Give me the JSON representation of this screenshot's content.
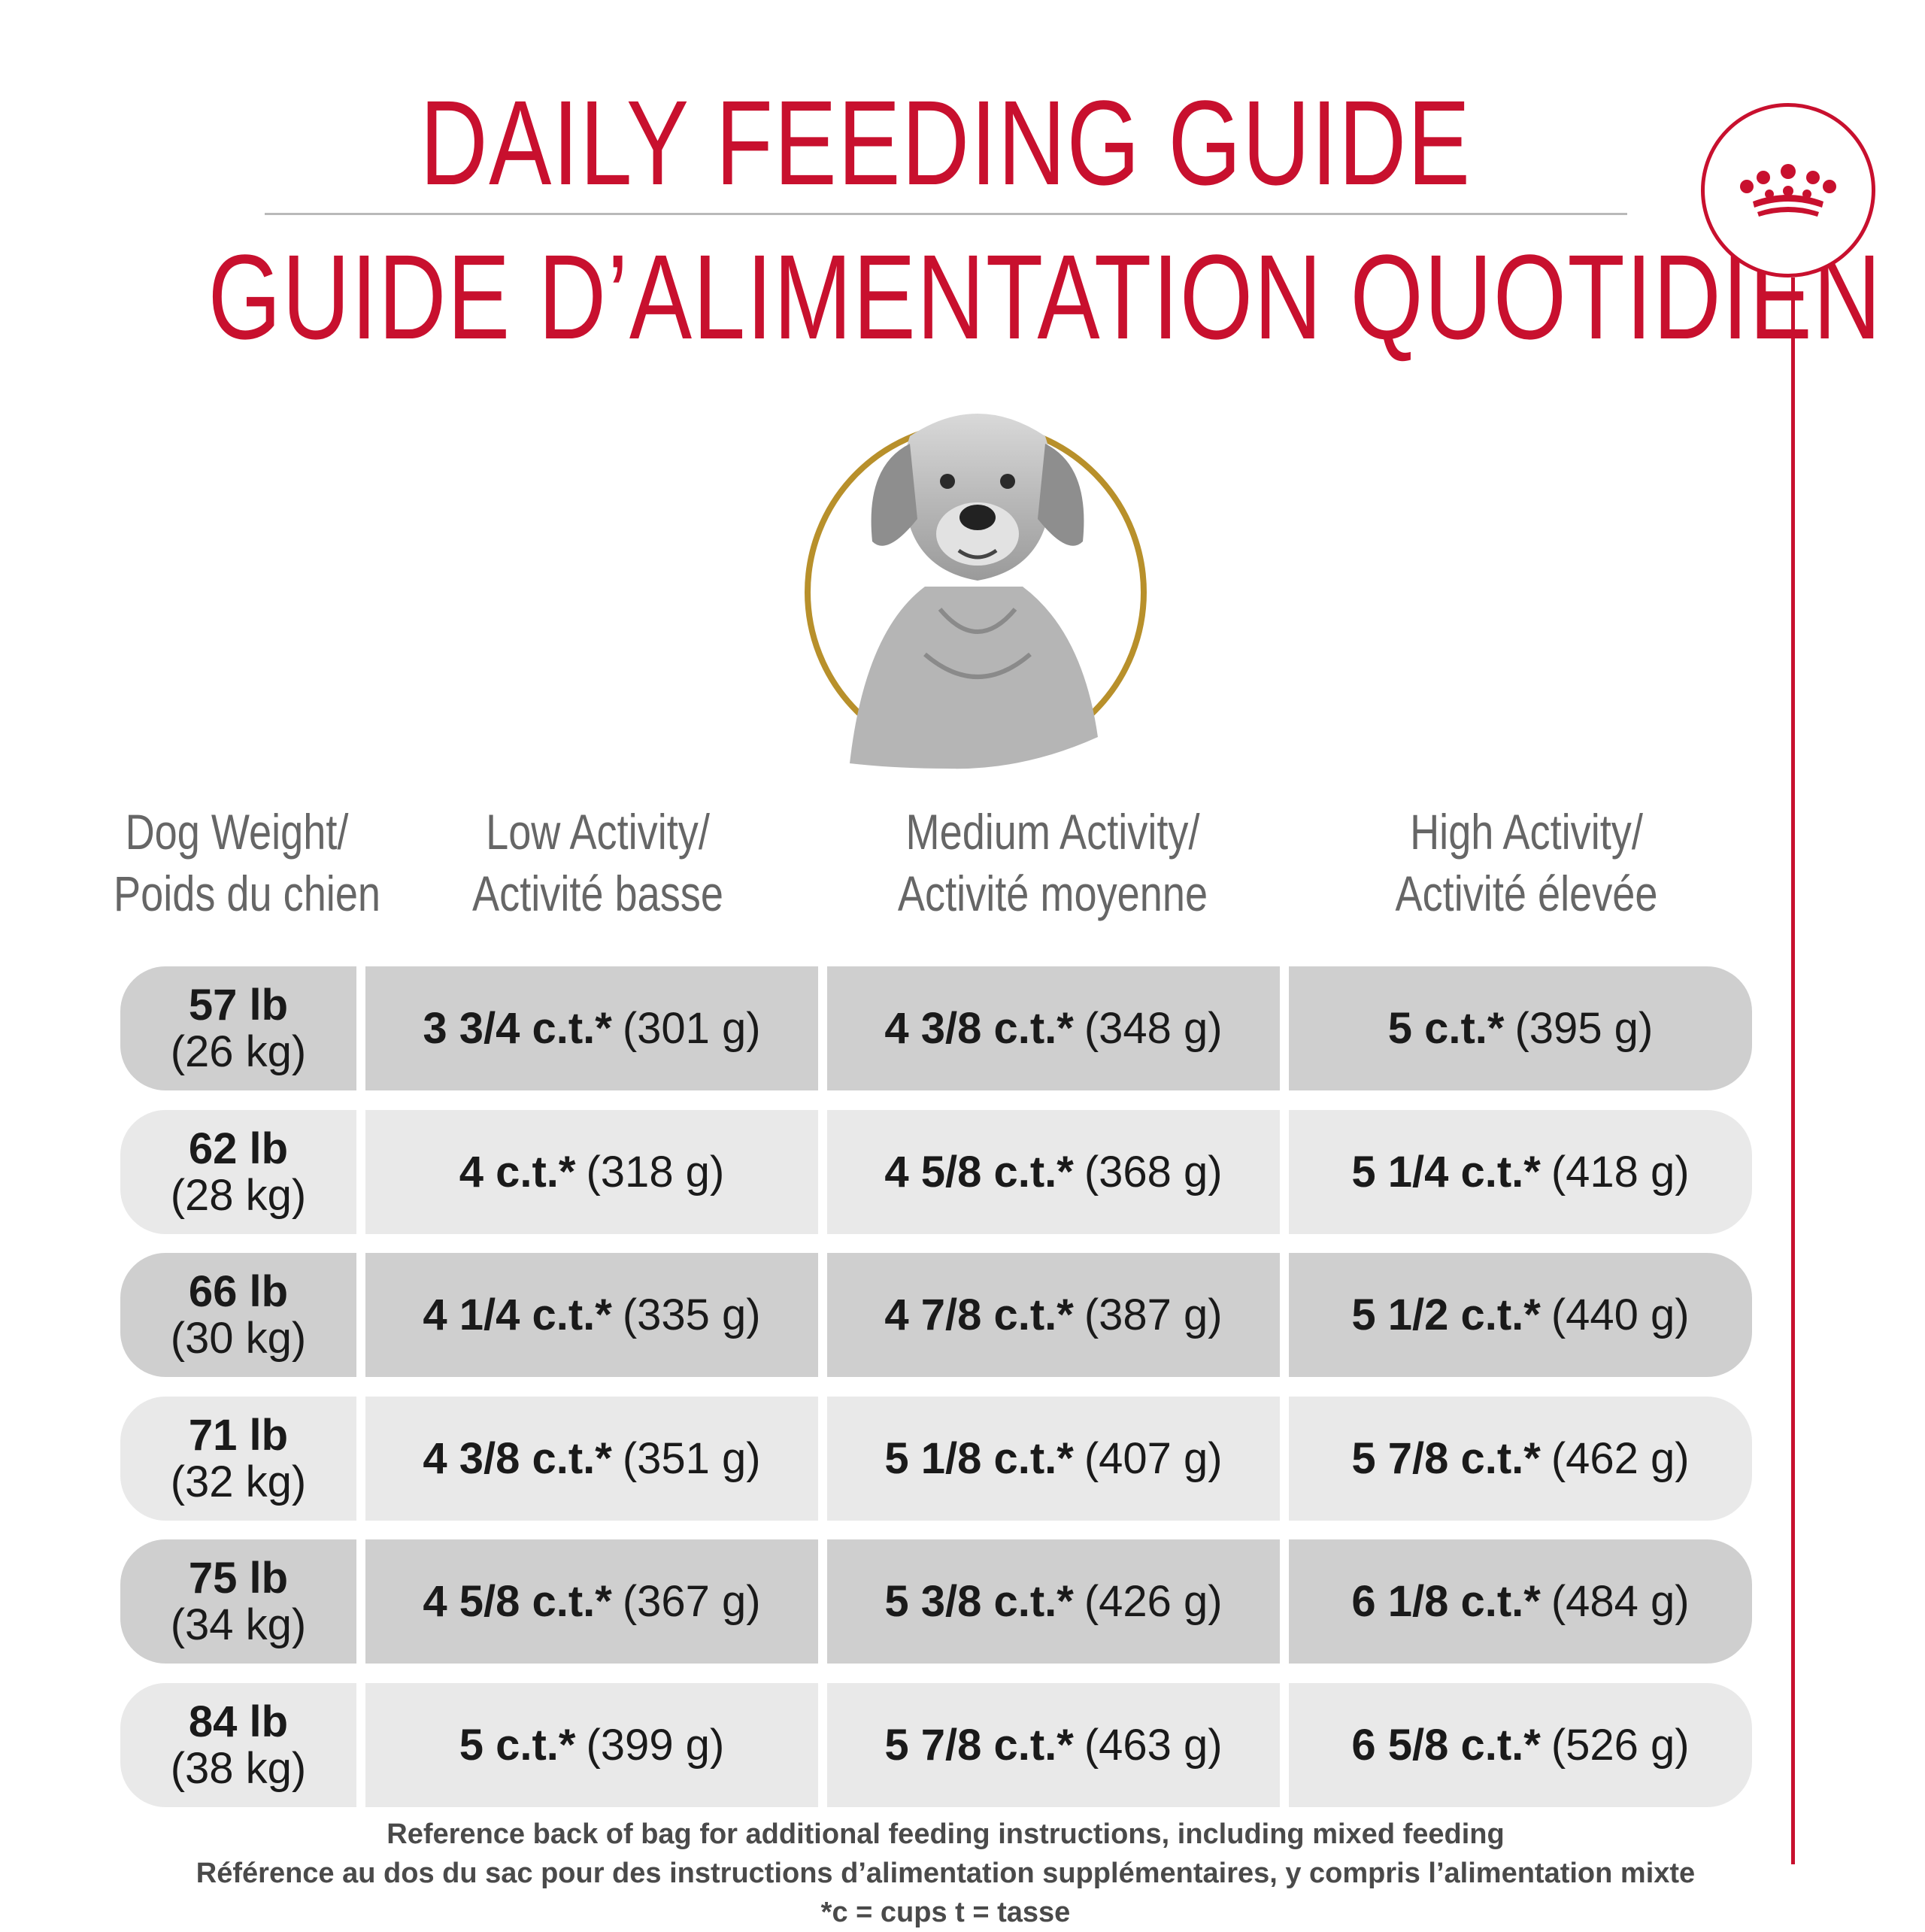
{
  "header": {
    "title_en": "DAILY FEEDING GUIDE",
    "title_fr": "GUIDE D’ALIMENTATION QUOTIDIEN"
  },
  "brand": {
    "icon": "crown-icon",
    "color": "#c8102e"
  },
  "columns": [
    {
      "line1": "Dog Weight/",
      "line2": "Poids du chien"
    },
    {
      "line1": "Low Activity/",
      "line2": "Activité basse"
    },
    {
      "line1": "Medium Activity/",
      "line2": "Activité moyenne"
    },
    {
      "line1": "High Activity/",
      "line2": "Activité élevée"
    }
  ],
  "rows": [
    {
      "lb": "57 lb",
      "kg": "(26 kg)",
      "low": {
        "amount": "3 3/4 c.t.*",
        "grams": "(301 g)"
      },
      "medium": {
        "amount": "4 3/8 c.t.*",
        "grams": "(348 g)"
      },
      "high": {
        "amount": "5 c.t.*",
        "grams": "(395 g)"
      }
    },
    {
      "lb": "62 lb",
      "kg": "(28 kg)",
      "low": {
        "amount": "4 c.t.*",
        "grams": "(318 g)"
      },
      "medium": {
        "amount": "4 5/8 c.t.*",
        "grams": "(368 g)"
      },
      "high": {
        "amount": "5 1/4 c.t.*",
        "grams": "(418 g)"
      }
    },
    {
      "lb": "66 lb",
      "kg": "(30 kg)",
      "low": {
        "amount": "4 1/4 c.t.*",
        "grams": "(335 g)"
      },
      "medium": {
        "amount": "4 7/8 c.t.*",
        "grams": "(387 g)"
      },
      "high": {
        "amount": "5 1/2 c.t.*",
        "grams": "(440 g)"
      }
    },
    {
      "lb": "71 lb",
      "kg": "(32 kg)",
      "low": {
        "amount": "4 3/8 c.t.*",
        "grams": "(351 g)"
      },
      "medium": {
        "amount": "5 1/8 c.t.*",
        "grams": "(407 g)"
      },
      "high": {
        "amount": "5 7/8 c.t.*",
        "grams": "(462 g)"
      }
    },
    {
      "lb": "75 lb",
      "kg": "(34 kg)",
      "low": {
        "amount": "4 5/8 c.t.*",
        "grams": "(367 g)"
      },
      "medium": {
        "amount": "5 3/8 c.t.*",
        "grams": "(426 g)"
      },
      "high": {
        "amount": "6 1/8 c.t.*",
        "grams": "(484 g)"
      }
    },
    {
      "lb": "84 lb",
      "kg": "(38 kg)",
      "low": {
        "amount": "5 c.t.*",
        "grams": "(399 g)"
      },
      "medium": {
        "amount": "5 7/8 c.t.*",
        "grams": "(463 g)"
      },
      "high": {
        "amount": "6 5/8 c.t.*",
        "grams": "(526 g)"
      }
    }
  ],
  "footer": {
    "line_en": "Reference back of bag for additional feeding instructions, including mixed feeding",
    "line_fr": "Référence au dos du sac pour des instructions d’alimentation supplémentaires, y compris l’alimentation mixte",
    "note": "*c = cups t = tasse"
  },
  "colors": {
    "title": "#c8102e",
    "ring": "#b8902b",
    "row_dark": "#cfcfcf",
    "row_light": "#e9e9e9"
  }
}
